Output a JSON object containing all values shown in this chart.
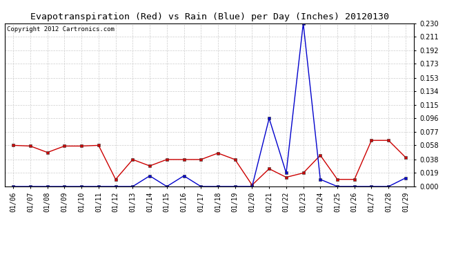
{
  "title": "Evapotranspiration (Red) vs Rain (Blue) per Day (Inches) 20120130",
  "copyright": "Copyright 2012 Cartronics.com",
  "x_labels": [
    "01/06",
    "01/07",
    "01/08",
    "01/09",
    "01/10",
    "01/11",
    "01/12",
    "01/13",
    "01/14",
    "01/15",
    "01/16",
    "01/17",
    "01/18",
    "01/19",
    "01/20",
    "01/21",
    "01/22",
    "01/23",
    "01/24",
    "01/25",
    "01/26",
    "01/27",
    "01/28",
    "01/29"
  ],
  "et_red": [
    0.058,
    0.057,
    0.048,
    0.057,
    0.057,
    0.058,
    0.01,
    0.038,
    0.029,
    0.038,
    0.038,
    0.038,
    0.047,
    0.038,
    0.002,
    0.025,
    0.013,
    0.019,
    0.044,
    0.01,
    0.01,
    0.065,
    0.065,
    0.041
  ],
  "rain_blue": [
    0.0,
    0.0,
    0.0,
    0.0,
    0.0,
    0.0,
    0.0,
    0.0,
    0.015,
    0.0,
    0.015,
    0.0,
    0.0,
    0.0,
    0.0,
    0.096,
    0.019,
    0.23,
    0.01,
    0.0,
    0.0,
    0.0,
    0.0,
    0.012
  ],
  "ylim": [
    0.0,
    0.23
  ],
  "yticks": [
    0.0,
    0.019,
    0.038,
    0.058,
    0.077,
    0.096,
    0.115,
    0.134,
    0.153,
    0.173,
    0.192,
    0.211,
    0.23
  ],
  "bg_color": "#ffffff",
  "plot_bg_color": "#ffffff",
  "grid_color": "#cccccc",
  "red_color": "#cc0000",
  "blue_color": "#0000cc",
  "title_fontsize": 9.5,
  "tick_fontsize": 7,
  "copyright_fontsize": 6.5
}
